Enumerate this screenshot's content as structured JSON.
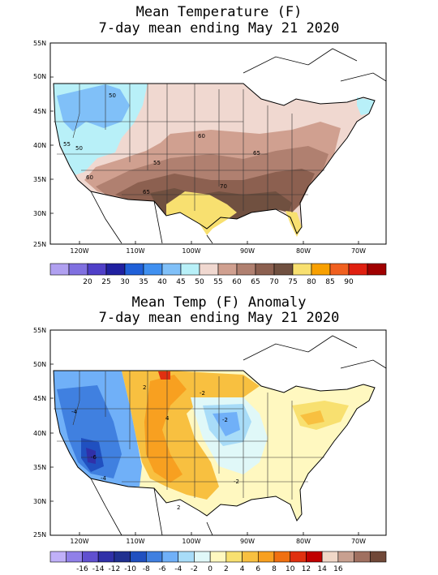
{
  "top": {
    "title_line1": "Mean Temperature (F)",
    "title_line2": "7-day mean ending May 21 2020",
    "lat_ticks": [
      "55N",
      "50N",
      "45N",
      "40N",
      "35N",
      "30N",
      "25N"
    ],
    "lon_ticks": [
      "120W",
      "110W",
      "100W",
      "90W",
      "80W",
      "70W"
    ],
    "colorbar": {
      "colors": [
        "#b0a0f0",
        "#8070e0",
        "#5040c8",
        "#2020a0",
        "#2060d8",
        "#4090f0",
        "#80c0f8",
        "#b8f0f8",
        "#f0d8d0",
        "#d0a090",
        "#b08070",
        "#8c6050",
        "#705040",
        "#f8e070",
        "#f8a000",
        "#f06020",
        "#e02010",
        "#a00000"
      ],
      "labels": [
        "20",
        "25",
        "30",
        "35",
        "40",
        "45",
        "50",
        "55",
        "60",
        "65",
        "70",
        "75",
        "80",
        "85",
        "90"
      ]
    },
    "contour_labels": [
      "50",
      "50",
      "55",
      "60",
      "55",
      "60",
      "65",
      "70",
      "65",
      "80",
      "65"
    ]
  },
  "bottom": {
    "title_line1": "Mean Temp (F) Anomaly",
    "title_line2": "7-day mean ending May 21 2020",
    "lat_ticks": [
      "55N",
      "50N",
      "45N",
      "40N",
      "35N",
      "30N",
      "25N"
    ],
    "lon_ticks": [
      "120W",
      "110W",
      "100W",
      "90W",
      "80W",
      "70W"
    ],
    "colorbar": {
      "colors": [
        "#c0b0f8",
        "#9080e8",
        "#6050d0",
        "#3030a8",
        "#2020880",
        "#2050c0",
        "#4080e0",
        "#70b0f8",
        "#a8dcf8",
        "#e0f8f8",
        "#fff8c0",
        "#f8e070",
        "#f8c040",
        "#f8a020",
        "#f07010",
        "#e03010",
        "#c00000",
        "#f0d8c8",
        "#c8a090",
        "#a07060",
        "#704838"
      ],
      "labels": [
        "-16",
        "-14",
        "-12",
        "-10",
        "-8",
        "-6",
        "-4",
        "-2",
        "0",
        "2",
        "4",
        "6",
        "8",
        "10",
        "12",
        "14",
        "16"
      ]
    },
    "contour_labels": [
      "2",
      "4",
      "-2",
      "-2",
      "-4",
      "-6",
      "2",
      "-4",
      "-2",
      "2",
      "2"
    ]
  }
}
